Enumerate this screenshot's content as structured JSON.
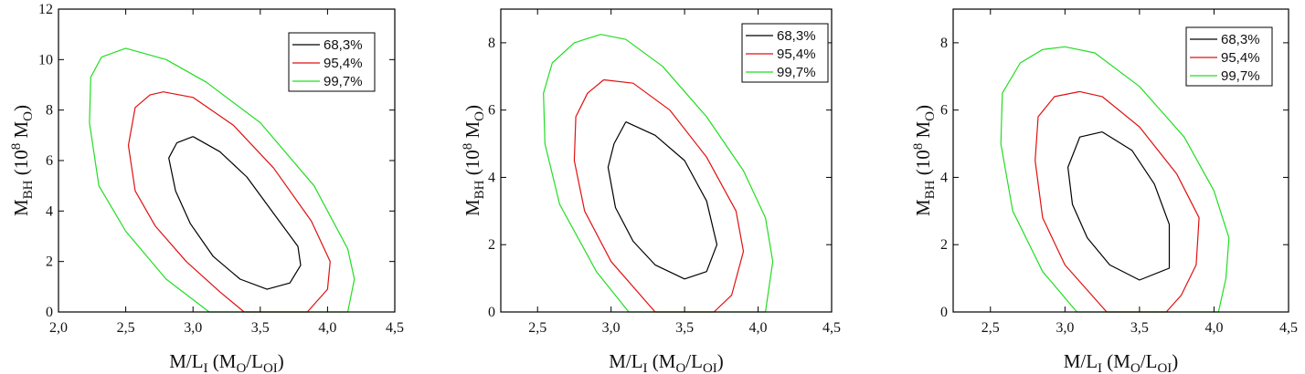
{
  "figure": {
    "panels_count": 3
  },
  "chart_data": [
    {
      "type": "contour",
      "title": "",
      "xlabel": {
        "main": "M/L",
        "sub_main": "I",
        "open": " (M",
        "sub_a": "O",
        "mid": "/L",
        "sub_b": "OI",
        "close": ")"
      },
      "ylabel": {
        "main": "M",
        "sub_main": "BH",
        "open": " (10",
        "sup": "8",
        "mid": " M",
        "sub_a": "O",
        "close": ")"
      },
      "xlim": [
        2.0,
        4.5
      ],
      "ylim": [
        0,
        12
      ],
      "xticks": [
        2.0,
        2.5,
        3.0,
        3.5,
        4.0,
        4.5
      ],
      "xtick_labels": [
        "2,0",
        "2,5",
        "3,0",
        "3,5",
        "4,0",
        "4,5"
      ],
      "yticks": [
        0,
        2,
        4,
        6,
        8,
        10,
        12
      ],
      "ytick_labels": [
        "0",
        "2",
        "4",
        "6",
        "8",
        "10",
        "12"
      ],
      "legend": {
        "position": "top-right"
      },
      "series": [
        {
          "name": "68,3%",
          "color": "#000000",
          "points": [
            [
              3.0,
              6.95
            ],
            [
              3.2,
              6.35
            ],
            [
              3.4,
              5.35
            ],
            [
              3.6,
              3.9
            ],
            [
              3.78,
              2.6
            ],
            [
              3.8,
              1.85
            ],
            [
              3.72,
              1.15
            ],
            [
              3.55,
              0.9
            ],
            [
              3.35,
              1.3
            ],
            [
              3.15,
              2.2
            ],
            [
              2.98,
              3.5
            ],
            [
              2.87,
              4.8
            ],
            [
              2.82,
              6.1
            ],
            [
              2.88,
              6.7
            ],
            [
              3.0,
              6.95
            ]
          ]
        },
        {
          "name": "95,4%",
          "color": "#e01010",
          "points": [
            [
              2.78,
              8.72
            ],
            [
              3.0,
              8.5
            ],
            [
              3.3,
              7.4
            ],
            [
              3.6,
              5.7
            ],
            [
              3.88,
              3.6
            ],
            [
              4.02,
              2.0
            ],
            [
              4.0,
              0.9
            ],
            [
              3.85,
              0.0
            ],
            [
              3.38,
              0.0
            ],
            [
              3.2,
              0.8
            ],
            [
              2.95,
              2.0
            ],
            [
              2.72,
              3.4
            ],
            [
              2.57,
              4.8
            ],
            [
              2.52,
              6.6
            ],
            [
              2.57,
              8.1
            ],
            [
              2.68,
              8.6
            ],
            [
              2.78,
              8.72
            ]
          ]
        },
        {
          "name": "99,7%",
          "color": "#22dd22",
          "points": [
            [
              2.5,
              10.45
            ],
            [
              2.8,
              10.0
            ],
            [
              3.1,
              9.1
            ],
            [
              3.5,
              7.5
            ],
            [
              3.9,
              5.0
            ],
            [
              4.15,
              2.5
            ],
            [
              4.2,
              1.3
            ],
            [
              4.15,
              0.0
            ],
            [
              3.12,
              0.0
            ],
            [
              2.8,
              1.3
            ],
            [
              2.5,
              3.2
            ],
            [
              2.3,
              5.0
            ],
            [
              2.23,
              7.5
            ],
            [
              2.24,
              9.3
            ],
            [
              2.32,
              10.1
            ],
            [
              2.5,
              10.45
            ]
          ]
        }
      ]
    },
    {
      "type": "contour",
      "title": "",
      "xlabel": {
        "main": "M/L",
        "sub_main": "I",
        "open": " (M",
        "sub_a": "O",
        "mid": "/L",
        "sub_b": "OI",
        "close": ")"
      },
      "ylabel": {
        "main": "M",
        "sub_main": "BH",
        "open": " (10",
        "sup": "8",
        "mid": " M",
        "sub_a": "O",
        "close": ")"
      },
      "xlim": [
        2.25,
        4.5
      ],
      "ylim": [
        0,
        9
      ],
      "xticks": [
        2.5,
        3.0,
        3.5,
        4.0,
        4.5
      ],
      "xtick_labels": [
        "2,5",
        "3,0",
        "3,5",
        "4,0",
        "4,5"
      ],
      "yticks": [
        0,
        2,
        4,
        6,
        8
      ],
      "ytick_labels": [
        "0",
        "2",
        "4",
        "6",
        "8"
      ],
      "legend": {
        "position": "top-right"
      },
      "series": [
        {
          "name": "68,3%",
          "color": "#000000",
          "points": [
            [
              3.1,
              5.65
            ],
            [
              3.3,
              5.25
            ],
            [
              3.5,
              4.5
            ],
            [
              3.65,
              3.3
            ],
            [
              3.72,
              2.0
            ],
            [
              3.65,
              1.2
            ],
            [
              3.5,
              0.98
            ],
            [
              3.3,
              1.4
            ],
            [
              3.15,
              2.1
            ],
            [
              3.03,
              3.1
            ],
            [
              2.98,
              4.3
            ],
            [
              3.02,
              5.0
            ],
            [
              3.1,
              5.65
            ]
          ]
        },
        {
          "name": "95,4%",
          "color": "#e01010",
          "points": [
            [
              2.95,
              6.9
            ],
            [
              3.15,
              6.8
            ],
            [
              3.4,
              6.0
            ],
            [
              3.65,
              4.6
            ],
            [
              3.85,
              3.0
            ],
            [
              3.9,
              1.8
            ],
            [
              3.82,
              0.5
            ],
            [
              3.7,
              0.0
            ],
            [
              3.3,
              0.0
            ],
            [
              3.0,
              1.5
            ],
            [
              2.82,
              3.0
            ],
            [
              2.75,
              4.5
            ],
            [
              2.76,
              5.8
            ],
            [
              2.84,
              6.5
            ],
            [
              2.95,
              6.9
            ]
          ]
        },
        {
          "name": "99,7%",
          "color": "#22dd22",
          "points": [
            [
              2.93,
              8.25
            ],
            [
              3.1,
              8.1
            ],
            [
              3.35,
              7.3
            ],
            [
              3.65,
              5.8
            ],
            [
              3.9,
              4.2
            ],
            [
              4.05,
              2.8
            ],
            [
              4.1,
              1.5
            ],
            [
              4.05,
              0.0
            ],
            [
              3.12,
              0.0
            ],
            [
              2.9,
              1.2
            ],
            [
              2.65,
              3.2
            ],
            [
              2.55,
              5.0
            ],
            [
              2.54,
              6.5
            ],
            [
              2.6,
              7.4
            ],
            [
              2.75,
              8.0
            ],
            [
              2.93,
              8.25
            ]
          ]
        }
      ]
    },
    {
      "type": "contour",
      "title": "",
      "xlabel": {
        "main": "M/L",
        "sub_main": "I",
        "open": " (M",
        "sub_a": "O",
        "mid": "/L",
        "sub_b": "OI",
        "close": ")"
      },
      "ylabel": {
        "main": "M",
        "sub_main": "BH",
        "open": " (10",
        "sup": "8",
        "mid": " M",
        "sub_a": "O",
        "close": ")"
      },
      "xlim": [
        2.25,
        4.5
      ],
      "ylim": [
        0,
        9
      ],
      "xticks": [
        2.5,
        3.0,
        3.5,
        4.0,
        4.5
      ],
      "xtick_labels": [
        "2,5",
        "3,0",
        "3,5",
        "4,0",
        "4,5"
      ],
      "yticks": [
        0,
        2,
        4,
        6,
        8
      ],
      "ytick_labels": [
        "0",
        "2",
        "4",
        "6",
        "8"
      ],
      "legend": {
        "position": "top-right"
      },
      "series": [
        {
          "name": "68,3%",
          "color": "#000000",
          "points": [
            [
              3.25,
              5.35
            ],
            [
              3.45,
              4.8
            ],
            [
              3.6,
              3.8
            ],
            [
              3.7,
              2.6
            ],
            [
              3.7,
              1.3
            ],
            [
              3.5,
              0.95
            ],
            [
              3.3,
              1.4
            ],
            [
              3.15,
              2.2
            ],
            [
              3.05,
              3.2
            ],
            [
              3.02,
              4.3
            ],
            [
              3.1,
              5.2
            ],
            [
              3.25,
              5.35
            ]
          ]
        },
        {
          "name": "95,4%",
          "color": "#e01010",
          "points": [
            [
              3.1,
              6.55
            ],
            [
              3.25,
              6.4
            ],
            [
              3.5,
              5.5
            ],
            [
              3.75,
              4.1
            ],
            [
              3.9,
              2.8
            ],
            [
              3.88,
              1.4
            ],
            [
              3.78,
              0.5
            ],
            [
              3.68,
              0.0
            ],
            [
              3.28,
              0.0
            ],
            [
              3.0,
              1.4
            ],
            [
              2.85,
              2.8
            ],
            [
              2.8,
              4.5
            ],
            [
              2.82,
              5.8
            ],
            [
              2.93,
              6.4
            ],
            [
              3.1,
              6.55
            ]
          ]
        },
        {
          "name": "99,7%",
          "color": "#22dd22",
          "points": [
            [
              3.0,
              7.88
            ],
            [
              3.2,
              7.7
            ],
            [
              3.5,
              6.7
            ],
            [
              3.8,
              5.2
            ],
            [
              4.0,
              3.6
            ],
            [
              4.1,
              2.2
            ],
            [
              4.08,
              1.0
            ],
            [
              4.03,
              0.0
            ],
            [
              3.08,
              0.0
            ],
            [
              2.85,
              1.2
            ],
            [
              2.65,
              3.0
            ],
            [
              2.57,
              5.0
            ],
            [
              2.58,
              6.5
            ],
            [
              2.7,
              7.4
            ],
            [
              2.85,
              7.8
            ],
            [
              3.0,
              7.88
            ]
          ]
        }
      ]
    }
  ]
}
